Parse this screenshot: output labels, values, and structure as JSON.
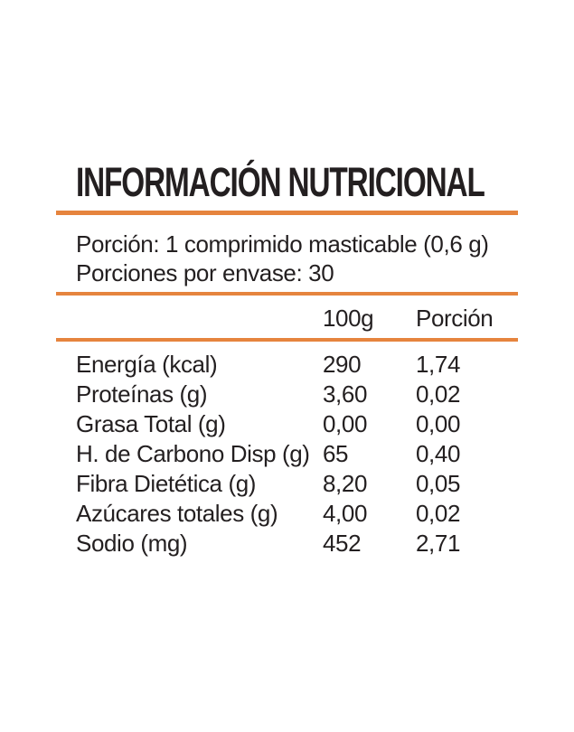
{
  "label": {
    "title": "INFORMACIÓN NUTRICIONAL",
    "serving": {
      "portion": "Porción: 1 comprimido masticable (0,6 g)",
      "servings_per_container": "Porciones por envase: 30"
    },
    "columns": {
      "per_100g": "100g",
      "per_portion": "Porción"
    },
    "rows": [
      {
        "nutrient": "Energía (kcal)",
        "per_100g": "290",
        "per_portion": "1,74"
      },
      {
        "nutrient": "Proteínas (g)",
        "per_100g": "3,60",
        "per_portion": "0,02"
      },
      {
        "nutrient": "Grasa Total (g)",
        "per_100g": "0,00",
        "per_portion": "0,00"
      },
      {
        "nutrient": "H. de Carbono Disp (g)",
        "per_100g": "65",
        "per_portion": "0,40"
      },
      {
        "nutrient": "Fibra Dietética (g)",
        "per_100g": "8,20",
        "per_portion": "0,05"
      },
      {
        "nutrient": "Azúcares totales (g)",
        "per_100g": "4,00",
        "per_portion": "0,02"
      },
      {
        "nutrient": "Sodio (mg)",
        "per_100g": "452",
        "per_portion": "2,71"
      }
    ],
    "colors": {
      "accent_orange": "#E6843E",
      "text": "#231F20",
      "background": "#FFFFFF"
    }
  }
}
